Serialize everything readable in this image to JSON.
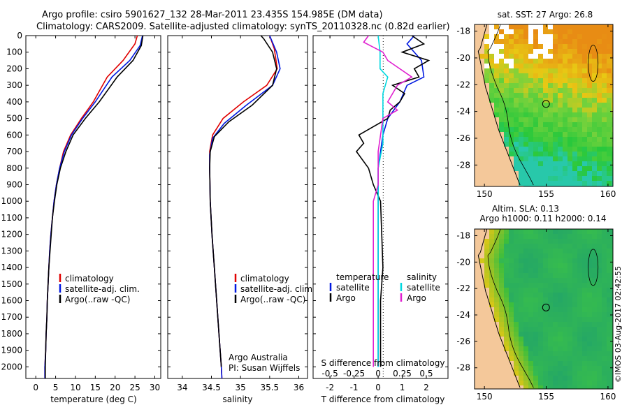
{
  "title_line1": "Argo profile: csiro 5901627_132 28-Mar-2011 23.435S 154.985E (DM data)",
  "title_line2": "Climatology: CARS2009. Satellite-adjusted climatology: synTS_20110328.nc (0.82d earlier)",
  "stamp": "©IMOS 03-Aug-2017 02:42:55",
  "depth_ticks": [
    0,
    100,
    200,
    300,
    400,
    500,
    600,
    700,
    800,
    900,
    1000,
    1100,
    1200,
    1300,
    1400,
    1500,
    1600,
    1700,
    1800,
    1900,
    2000
  ],
  "colors": {
    "climatology": "#e00000",
    "satellite": "#0018e0",
    "argo": "#000000",
    "sal_satellite": "#00d8e0",
    "sal_argo": "#e020d0"
  },
  "temperature_panel": {
    "xlabel": "temperature (deg C)",
    "xticks": [
      "0",
      "5",
      "10",
      "15",
      "20",
      "25",
      "30"
    ],
    "legend": [
      "climatology",
      "satellite-adj. clim.",
      "Argo(..raw -QC)"
    ]
  },
  "salinity_panel": {
    "xlabel": "salinity",
    "xticks": [
      "34",
      "34.5",
      "35",
      "35.5",
      "36"
    ],
    "legend": [
      "climatology",
      "satellite-adj. clim.",
      "Argo(..raw -QC)"
    ],
    "note1": "Argo Australia",
    "note2": "PI: Susan Wijffels"
  },
  "difference_panel": {
    "legend_t_title": "temperature",
    "legend_s_title": "salinity",
    "legend_t": [
      "satellite",
      "Argo"
    ],
    "legend_s": [
      "satellite",
      "Argo"
    ],
    "s_label": "S difference from climatology",
    "s_ticks": [
      "-0.5",
      "-0.25",
      "0",
      "0.25",
      "0.5"
    ],
    "t_label": "T difference from climatology",
    "t_ticks": [
      "-2",
      "-1",
      "0",
      "1",
      "2"
    ]
  },
  "map_sst": {
    "title": "sat. SST: 27 Argo: 26.8",
    "lat_ticks": [
      "-18",
      "-20",
      "-22",
      "-24",
      "-26",
      "-28"
    ],
    "lon_ticks": [
      "150",
      "155",
      "160"
    ]
  },
  "map_sla": {
    "title1": "Altim. SLA: 0.13",
    "title2": "Argo h1000: 0.11 h2000: 0.14",
    "lat_ticks": [
      "-18",
      "-20",
      "-22",
      "-24",
      "-26",
      "-28"
    ],
    "lon_ticks": [
      "150",
      "155",
      "160"
    ]
  },
  "chart_data": [
    {
      "type": "line",
      "name": "temperature profile",
      "xlabel": "temperature (deg C)",
      "ylabel": "",
      "xlim": [
        -2.5,
        31.5
      ],
      "ylim": [
        2070,
        0
      ],
      "series": [
        {
          "name": "climatology",
          "color": "#e00000",
          "points": [
            [
              25.6,
              0
            ],
            [
              25,
              50
            ],
            [
              22,
              150
            ],
            [
              18,
              250
            ],
            [
              14.5,
              400
            ],
            [
              11.5,
              500
            ],
            [
              8.8,
              600
            ],
            [
              7,
              700
            ],
            [
              6,
              800
            ],
            [
              5.2,
              900
            ],
            [
              4.6,
              1000
            ],
            [
              4.2,
              1100
            ],
            [
              3.8,
              1200
            ],
            [
              3.5,
              1300
            ],
            [
              3.3,
              1400
            ],
            [
              3.1,
              1500
            ],
            [
              2.9,
              1600
            ],
            [
              2.8,
              1700
            ],
            [
              2.6,
              1800
            ],
            [
              2.5,
              1900
            ],
            [
              2.3,
              2000
            ],
            [
              2.3,
              2070
            ]
          ]
        },
        {
          "name": "satellite-adj. clim.",
          "color": "#0018e0",
          "points": [
            [
              26.9,
              0
            ],
            [
              26.3,
              60
            ],
            [
              23.7,
              150
            ],
            [
              19.2,
              250
            ],
            [
              15,
              400
            ],
            [
              11.8,
              500
            ],
            [
              9,
              600
            ],
            [
              7.2,
              700
            ],
            [
              6,
              800
            ],
            [
              5.2,
              900
            ],
            [
              4.6,
              1000
            ],
            [
              4.2,
              1100
            ],
            [
              3.8,
              1200
            ],
            [
              3.5,
              1300
            ],
            [
              3.3,
              1400
            ],
            [
              3.1,
              1500
            ],
            [
              2.9,
              1600
            ],
            [
              2.8,
              1700
            ],
            [
              2.6,
              1800
            ],
            [
              2.5,
              1900
            ],
            [
              2.3,
              2000
            ],
            [
              2.3,
              2070
            ]
          ]
        },
        {
          "name": "Argo(..raw -QC)",
          "color": "#000000",
          "points": [
            [
              27,
              0
            ],
            [
              26.6,
              60
            ],
            [
              24.5,
              150
            ],
            [
              20.5,
              250
            ],
            [
              16,
              400
            ],
            [
              12.5,
              500
            ],
            [
              9.4,
              600
            ],
            [
              7.6,
              700
            ],
            [
              6.2,
              800
            ],
            [
              5.3,
              900
            ],
            [
              4.7,
              1000
            ],
            [
              4.2,
              1100
            ],
            [
              3.9,
              1200
            ],
            [
              3.6,
              1300
            ],
            [
              3.3,
              1400
            ],
            [
              3.1,
              1500
            ],
            [
              2.9,
              1600
            ],
            [
              2.8,
              1700
            ],
            [
              2.6,
              1800
            ],
            [
              2.5,
              1900
            ],
            [
              2.4,
              2000
            ],
            [
              2.4,
              2070
            ]
          ]
        }
      ]
    },
    {
      "type": "line",
      "name": "salinity profile",
      "xlabel": "salinity",
      "ylabel": "",
      "xlim": [
        33.75,
        36.15
      ],
      "ylim": [
        2070,
        0
      ],
      "series": [
        {
          "name": "climatology",
          "color": "#e00000",
          "points": [
            [
              35.5,
              0
            ],
            [
              35.58,
              80
            ],
            [
              35.63,
              200
            ],
            [
              35.45,
              300
            ],
            [
              35.05,
              400
            ],
            [
              34.7,
              500
            ],
            [
              34.52,
              600
            ],
            [
              34.47,
              700
            ],
            [
              34.47,
              800
            ],
            [
              34.48,
              1000
            ],
            [
              34.51,
              1200
            ],
            [
              34.55,
              1400
            ],
            [
              34.59,
              1600
            ],
            [
              34.63,
              1800
            ],
            [
              34.67,
              2000
            ],
            [
              34.68,
              2070
            ]
          ]
        },
        {
          "name": "satellite-adj. clim.",
          "color": "#0018e0",
          "points": [
            [
              35.5,
              0
            ],
            [
              35.62,
              100
            ],
            [
              35.68,
              200
            ],
            [
              35.55,
              300
            ],
            [
              35.1,
              420
            ],
            [
              34.72,
              530
            ],
            [
              34.52,
              620
            ],
            [
              34.47,
              720
            ],
            [
              34.47,
              800
            ],
            [
              34.48,
              1000
            ],
            [
              34.51,
              1200
            ],
            [
              34.55,
              1400
            ],
            [
              34.59,
              1600
            ],
            [
              34.63,
              1800
            ],
            [
              34.67,
              2000
            ],
            [
              34.68,
              2070
            ]
          ]
        },
        {
          "name": "Argo(..raw -QC)",
          "color": "#000000",
          "points": [
            [
              35.35,
              0
            ],
            [
              35.4,
              20
            ],
            [
              35.55,
              100
            ],
            [
              35.62,
              200
            ],
            [
              35.55,
              300
            ],
            [
              35.2,
              420
            ],
            [
              34.8,
              520
            ],
            [
              34.55,
              610
            ],
            [
              34.48,
              700
            ],
            [
              34.47,
              800
            ],
            [
              34.48,
              1000
            ],
            [
              34.51,
              1200
            ],
            [
              34.55,
              1400
            ],
            [
              34.59,
              1600
            ],
            [
              34.63,
              1800
            ],
            [
              34.67,
              2000
            ]
          ]
        }
      ]
    },
    {
      "type": "line",
      "name": "difference from climatology",
      "xlabel": "T difference from climatology",
      "x2label": "S difference from climatology",
      "ylabel": "",
      "xlim": [
        -2.7,
        2.9
      ],
      "x2lim": [
        -0.675,
        0.725
      ],
      "ylim": [
        2070,
        0
      ],
      "series": [
        {
          "name": "temperature satellite",
          "color": "#0018e0",
          "axis": "T",
          "points": [
            [
              1.5,
              0
            ],
            [
              1.2,
              50
            ],
            [
              1.8,
              150
            ],
            [
              1.9,
              250
            ],
            [
              1.2,
              300
            ],
            [
              0.9,
              400
            ],
            [
              0.4,
              500
            ],
            [
              0.2,
              600
            ],
            [
              0.1,
              700
            ],
            [
              0,
              800
            ],
            [
              0,
              1000
            ],
            [
              0,
              1500
            ],
            [
              0,
              2000
            ]
          ]
        },
        {
          "name": "temperature Argo",
          "color": "#000000",
          "axis": "T",
          "points": [
            [
              1.4,
              0
            ],
            [
              1.9,
              50
            ],
            [
              1.0,
              100
            ],
            [
              2.1,
              150
            ],
            [
              1.5,
              200
            ],
            [
              1.7,
              250
            ],
            [
              0.6,
              300
            ],
            [
              1.1,
              350
            ],
            [
              0.9,
              400
            ],
            [
              0.5,
              450
            ],
            [
              0.4,
              500
            ],
            [
              -0.8,
              600
            ],
            [
              -0.6,
              650
            ],
            [
              -0.9,
              700
            ],
            [
              -0.4,
              800
            ],
            [
              -0.2,
              900
            ],
            [
              0.1,
              1000
            ],
            [
              0.15,
              1200
            ],
            [
              0.2,
              1400
            ],
            [
              0.1,
              1600
            ],
            [
              0.1,
              1800
            ],
            [
              0.1,
              2000
            ]
          ]
        },
        {
          "name": "salinity satellite",
          "color": "#00d8e0",
          "axis": "S",
          "points": [
            [
              0,
              0
            ],
            [
              0.02,
              100
            ],
            [
              0.02,
              200
            ],
            [
              0.1,
              250
            ],
            [
              0.05,
              350
            ],
            [
              0.05,
              500
            ],
            [
              0.05,
              650
            ],
            [
              0,
              800
            ],
            [
              0,
              1000
            ],
            [
              0,
              1500
            ],
            [
              0,
              2000
            ]
          ]
        },
        {
          "name": "salinity Argo",
          "color": "#e020d0",
          "axis": "S",
          "points": [
            [
              -0.1,
              0
            ],
            [
              -0.15,
              40
            ],
            [
              0.05,
              100
            ],
            [
              0.1,
              150
            ],
            [
              0.35,
              250
            ],
            [
              0.2,
              300
            ],
            [
              0.1,
              400
            ],
            [
              0.2,
              450
            ],
            [
              0.05,
              500
            ],
            [
              0,
              700
            ],
            [
              0,
              900
            ],
            [
              -0.05,
              1000
            ],
            [
              -0.05,
              1300
            ],
            [
              -0.05,
              1600
            ],
            [
              -0.05,
              1900
            ],
            [
              -0.05,
              2000
            ]
          ]
        }
      ]
    },
    {
      "type": "heatmap",
      "name": "sat. SST: 27 Argo: 26.8",
      "xlabel": "",
      "ylabel": "",
      "xlim": [
        149.2,
        160.4
      ],
      "ylim": [
        -29.6,
        -17.5
      ],
      "argo_position": [
        154.985,
        -23.435
      ]
    },
    {
      "type": "heatmap",
      "name": "Altim. SLA: 0.13",
      "xlabel": "",
      "ylabel": "",
      "xlim": [
        149.2,
        160.4
      ],
      "ylim": [
        -29.6,
        -17.5
      ],
      "argo_position": [
        154.985,
        -23.435
      ]
    }
  ]
}
